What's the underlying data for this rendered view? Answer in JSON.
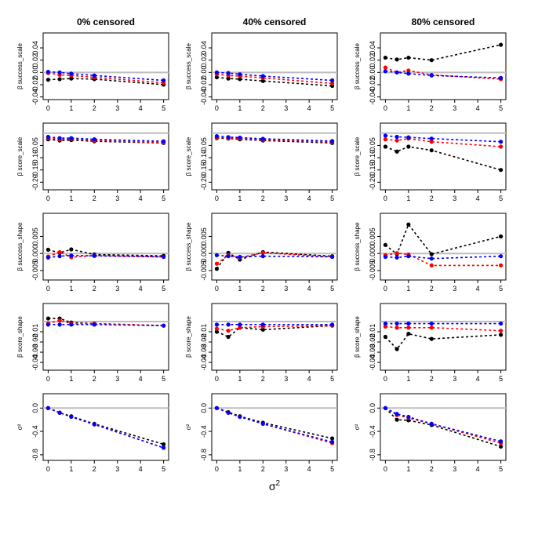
{
  "figure": {
    "x_axis_label": "σ",
    "x_axis_label_sup": "2"
  },
  "chart_data": {
    "type": "line",
    "column_titles": [
      "0% censored",
      "40% censored",
      "80% censored"
    ],
    "x": [
      0,
      0.5,
      1,
      2,
      5
    ],
    "x_ticks": [
      "0",
      "1",
      "2",
      "3",
      "4",
      "5"
    ],
    "xlim": [
      0,
      5
    ],
    "series_colors": {
      "black": "#000000",
      "red": "#ff0000",
      "blue": "#0000ff"
    },
    "reference_color": "#bebebe",
    "rows": [
      {
        "ylabel": "β success_scale",
        "ylim": [
          -0.04,
          0.06
        ],
        "yticks": [
          "-0.04",
          "-0.02",
          "0.00",
          "0.02",
          "0.04"
        ],
        "panels": [
          {
            "black": [
              -0.012,
              -0.011,
              -0.01,
              -0.011,
              -0.02
            ],
            "red": [
              -0.001,
              -0.004,
              -0.005,
              -0.008,
              -0.017
            ],
            "blue": [
              0.001,
              0.0,
              -0.002,
              -0.005,
              -0.013
            ]
          },
          {
            "black": [
              -0.008,
              -0.01,
              -0.011,
              -0.014,
              -0.022
            ],
            "red": [
              -0.003,
              -0.005,
              -0.006,
              -0.009,
              -0.018
            ],
            "blue": [
              0.0,
              -0.001,
              -0.003,
              -0.006,
              -0.013
            ]
          },
          {
            "black": [
              0.024,
              0.021,
              0.024,
              0.02,
              0.045
            ],
            "red": [
              0.008,
              0.0,
              0.003,
              -0.004,
              -0.011
            ],
            "blue": [
              0.002,
              0.0,
              -0.002,
              -0.005,
              -0.009
            ]
          }
        ]
      },
      {
        "ylabel": "β score_scale",
        "ylim": [
          -0.22,
          0.03
        ],
        "yticks": [
          "-0.20",
          "-0.15",
          "-0.10",
          "-0.05"
        ],
        "panels": [
          {
            "black": [
              -0.025,
              -0.03,
              -0.028,
              -0.033,
              -0.04
            ],
            "red": [
              -0.02,
              -0.025,
              -0.023,
              -0.03,
              -0.038
            ],
            "blue": [
              -0.015,
              -0.02,
              -0.02,
              -0.025,
              -0.033
            ]
          },
          {
            "black": [
              -0.02,
              -0.022,
              -0.025,
              -0.03,
              -0.04
            ],
            "red": [
              -0.017,
              -0.02,
              -0.022,
              -0.027,
              -0.036
            ],
            "blue": [
              -0.012,
              -0.016,
              -0.018,
              -0.023,
              -0.032
            ]
          },
          {
            "black": [
              -0.055,
              -0.075,
              -0.055,
              -0.07,
              -0.15
            ],
            "red": [
              -0.025,
              -0.03,
              -0.022,
              -0.035,
              -0.055
            ],
            "blue": [
              -0.01,
              -0.015,
              -0.017,
              -0.022,
              -0.035
            ]
          }
        ]
      },
      {
        "ylabel": "β success_shape",
        "ylim": [
          -0.007,
          0.011
        ],
        "yticks": [
          "-0.005",
          "0.000",
          "0.005"
        ],
        "panels": [
          {
            "black": [
              0.0011,
              0.0002,
              0.0012,
              -0.0003,
              -0.0007
            ],
            "red": [
              -0.0009,
              0.0004,
              -0.0011,
              -0.0006,
              -0.001
            ],
            "blue": [
              -0.0012,
              -0.0008,
              -0.0006,
              -0.0007,
              -0.001
            ]
          },
          {
            "black": [
              -0.0045,
              0.0002,
              -0.0018,
              0.0004,
              -0.0008
            ],
            "red": [
              -0.003,
              -0.0005,
              -0.0012,
              0.0002,
              -0.001
            ],
            "blue": [
              -0.0005,
              -0.0008,
              -0.001,
              -0.0008,
              -0.001
            ]
          },
          {
            "black": [
              0.0025,
              -0.0002,
              0.0085,
              -0.0002,
              0.005
            ],
            "red": [
              -0.0005,
              0.0001,
              -0.0003,
              -0.0035,
              -0.0035
            ],
            "blue": [
              -0.001,
              -0.0012,
              -0.0008,
              -0.0015,
              -0.0008
            ]
          }
        ]
      },
      {
        "ylabel": "β score_shape",
        "ylim": [
          -0.045,
          0.015
        ],
        "yticks": [
          "-0.04",
          "-0.03",
          "-0.02",
          "-0.01"
        ],
        "panels": [
          {
            "black": [
              0.003,
              0.003,
              -0.001,
              -0.002,
              -0.004
            ],
            "red": [
              -0.002,
              0.001,
              -0.002,
              -0.002,
              -0.004
            ],
            "blue": [
              -0.003,
              -0.003,
              -0.003,
              -0.003,
              -0.004
            ]
          },
          {
            "black": [
              -0.01,
              -0.015,
              -0.006,
              -0.008,
              -0.004
            ],
            "red": [
              -0.007,
              -0.009,
              -0.006,
              -0.005,
              -0.004
            ],
            "blue": [
              -0.003,
              -0.003,
              -0.003,
              -0.003,
              -0.003
            ]
          },
          {
            "black": [
              -0.015,
              -0.027,
              -0.012,
              -0.017,
              -0.013
            ],
            "red": [
              -0.005,
              -0.006,
              -0.006,
              -0.006,
              -0.009
            ],
            "blue": [
              -0.002,
              -0.002,
              -0.002,
              -0.002,
              -0.002
            ]
          }
        ]
      },
      {
        "ylabel": "σ²",
        "ylim": [
          -0.85,
          0.2
        ],
        "yticks": [
          "-0.8",
          "-0.4",
          "0.0"
        ],
        "panels": [
          {
            "black": [
              0.0,
              -0.08,
              -0.14,
              -0.27,
              -0.62
            ],
            "red": [
              0.0,
              -0.08,
              -0.15,
              -0.28,
              -0.68
            ],
            "blue": [
              0.0,
              -0.08,
              -0.15,
              -0.28,
              -0.68
            ]
          },
          {
            "black": [
              0.0,
              -0.07,
              -0.14,
              -0.25,
              -0.52
            ],
            "red": [
              0.0,
              -0.08,
              -0.15,
              -0.27,
              -0.6
            ],
            "blue": [
              0.0,
              -0.08,
              -0.15,
              -0.27,
              -0.58
            ]
          },
          {
            "black": [
              0.0,
              -0.2,
              -0.21,
              -0.29,
              -0.66
            ],
            "red": [
              0.0,
              -0.12,
              -0.17,
              -0.27,
              -0.6
            ],
            "blue": [
              0.0,
              -0.1,
              -0.15,
              -0.27,
              -0.57
            ]
          }
        ]
      }
    ]
  }
}
